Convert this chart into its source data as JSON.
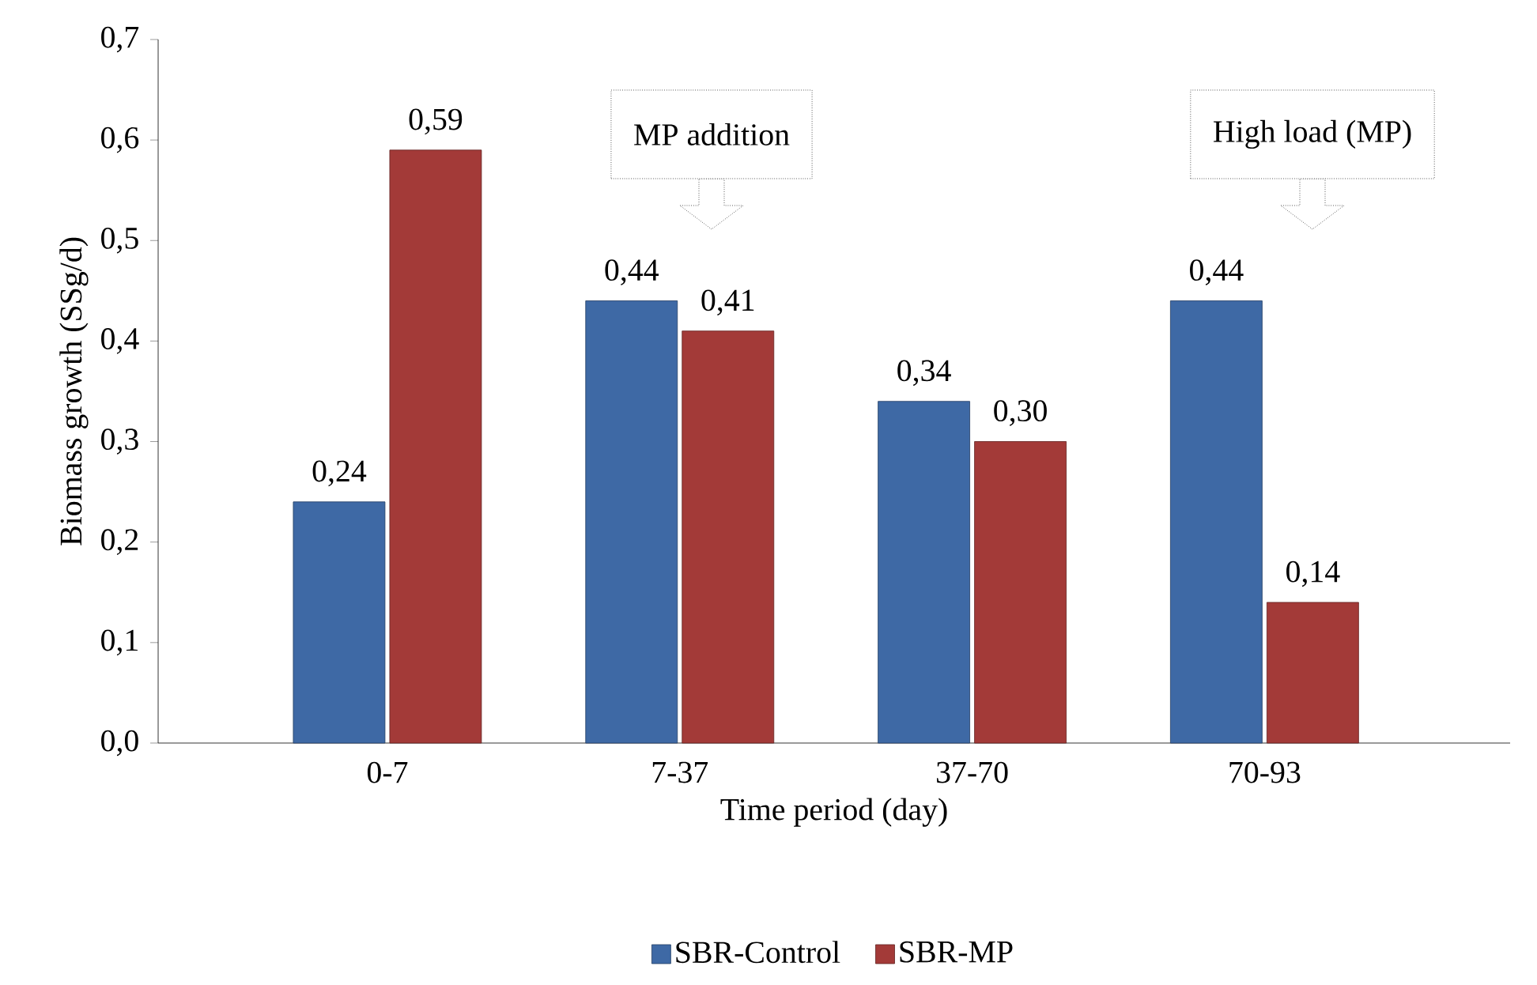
{
  "chart_data": {
    "type": "bar",
    "xlabel": "Time period (day)",
    "ylabel": "Biomass growth (SSg/d)",
    "categories": [
      "0-7",
      "7-37",
      "37-70",
      "70-93"
    ],
    "series": [
      {
        "name": "SBR-Control",
        "color": "#3e69a5",
        "values": [
          0.24,
          0.44,
          0.34,
          0.44
        ],
        "value_labels": [
          "0,24",
          "0,44",
          "0,34",
          "0,44"
        ]
      },
      {
        "name": "SBR-MP",
        "color": "#a33a38",
        "values": [
          0.59,
          0.41,
          0.3,
          0.14
        ],
        "value_labels": [
          "0,59",
          "0,41",
          "0,30",
          "0,14"
        ]
      }
    ],
    "ylim": [
      0,
      0.7
    ],
    "yticks": [
      {
        "value": 0,
        "label": "0,0"
      },
      {
        "value": 0.1,
        "label": "0,1"
      },
      {
        "value": 0.2,
        "label": "0,2"
      },
      {
        "value": 0.3,
        "label": "0,3"
      },
      {
        "value": 0.4,
        "label": "0,4"
      },
      {
        "value": 0.5,
        "label": "0,5"
      },
      {
        "value": 0.6,
        "label": "0,6"
      },
      {
        "value": 0.7,
        "label": "0,7"
      }
    ],
    "annotations": [
      "MP addition",
      "High load (MP)"
    ],
    "legend": "bottom",
    "grid": false
  }
}
